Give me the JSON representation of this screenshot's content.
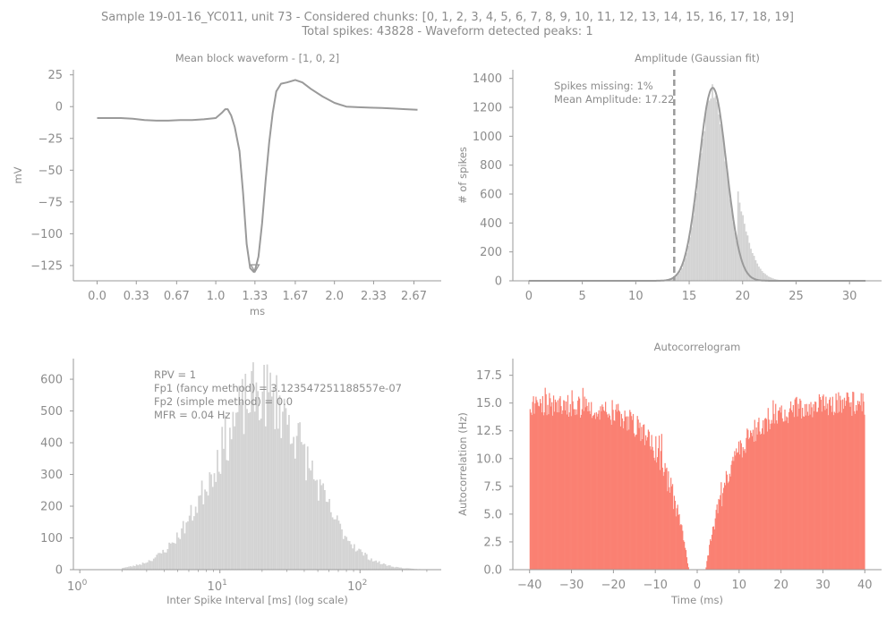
{
  "suptitle": {
    "line1": "Sample 19-01-16_YC011, unit 73 - Considered chunks: [0, 1, 2, 3, 4, 5, 6, 7, 8, 9, 10, 11, 12, 13, 14, 15, 16, 17, 18, 19]",
    "line2": "Total spikes: 43828 - Waveform detected peaks: 1"
  },
  "colors": {
    "waveform": "#d3d3d3",
    "histogram": "#d3d3d3",
    "gauss_fit": "#f2cc1f",
    "threshold": "#e8685c",
    "autocorr": "#fa8072",
    "peak_marker": "#e8685c",
    "axis": "#9a9a9a",
    "text": "#8c8c8c"
  },
  "chart_data": [
    {
      "id": "waveform",
      "type": "line",
      "title": "Mean block waveform - [1, 0, 2]",
      "xlabel": "ms",
      "ylabel": "mV",
      "xlim": [
        -0.2,
        2.9
      ],
      "ylim": [
        -137,
        29
      ],
      "xticks": [
        0.0,
        0.33,
        0.67,
        1.0,
        1.33,
        1.67,
        2.0,
        2.33,
        2.67
      ],
      "xtick_labels": [
        "0.0",
        "0.33",
        "0.67",
        "1.0",
        "1.33",
        "1.67",
        "2.0",
        "2.33",
        "2.67"
      ],
      "yticks": [
        25,
        0,
        -25,
        -50,
        -75,
        -100,
        -125
      ],
      "ytick_labels": [
        "25",
        "0",
        "−25",
        "−50",
        "−75",
        "−100",
        "−125"
      ],
      "x": [
        0.0,
        0.1,
        0.2,
        0.3,
        0.4,
        0.5,
        0.6,
        0.7,
        0.8,
        0.9,
        1.0,
        1.05,
        1.08,
        1.1,
        1.13,
        1.16,
        1.2,
        1.23,
        1.26,
        1.29,
        1.32,
        1.33,
        1.36,
        1.39,
        1.42,
        1.45,
        1.48,
        1.51,
        1.55,
        1.6,
        1.67,
        1.73,
        1.8,
        1.9,
        2.0,
        2.1,
        2.2,
        2.3,
        2.4,
        2.5,
        2.6,
        2.7
      ],
      "y": [
        -9,
        -9,
        -9,
        -9.5,
        -10.5,
        -11,
        -11,
        -10.5,
        -10.5,
        -10,
        -9,
        -5,
        -2,
        -2,
        -7,
        -16,
        -35,
        -68,
        -108,
        -127,
        -130,
        -129,
        -118,
        -92,
        -58,
        -28,
        -5,
        12,
        18,
        19,
        21,
        19,
        14,
        8,
        3,
        0,
        -0.5,
        -0.8,
        -1,
        -1.5,
        -2,
        -2.5
      ],
      "peak": {
        "x": 1.33,
        "y": -130
      }
    },
    {
      "id": "amplitude",
      "type": "bar",
      "title": "Amplitude (Gaussian fit)",
      "xlabel": "",
      "ylabel": "# of spikes",
      "xlim": [
        -1.5,
        33
      ],
      "ylim": [
        0,
        1460
      ],
      "xticks": [
        0,
        5,
        10,
        15,
        20,
        25,
        30
      ],
      "xtick_labels": [
        "0",
        "5",
        "10",
        "15",
        "20",
        "25",
        "30"
      ],
      "yticks": [
        0,
        200,
        400,
        600,
        800,
        1000,
        1200,
        1400
      ],
      "ytick_labels": [
        "0",
        "200",
        "400",
        "600",
        "800",
        "1000",
        "1200",
        "1400"
      ],
      "hist": {
        "start": 0,
        "end": 31.5,
        "nbins": 210,
        "mean": 17.22,
        "std": 1.25,
        "peak": 1310,
        "tail_above": 19.5,
        "tail_std": 1.9
      },
      "fit": {
        "mean": 17.2,
        "std": 1.28,
        "amp": 1335,
        "x_range": [
          0,
          31.5
        ]
      },
      "threshold_x": 13.6,
      "annotations": [
        "Spikes missing: 1%",
        "Mean Amplitude: 17.22"
      ]
    },
    {
      "id": "isi",
      "type": "bar",
      "title": "",
      "xlabel": "Inter Spike Interval [ms] (log scale)",
      "ylabel": "",
      "xscale": "log",
      "xlim": [
        0.9,
        380
      ],
      "ylim": [
        0,
        665
      ],
      "xticks": [
        1,
        10,
        100
      ],
      "xtick_base": "10",
      "xtick_exps": [
        "0",
        "1",
        "2"
      ],
      "yticks": [
        0,
        100,
        200,
        300,
        400,
        500,
        600
      ],
      "ytick_labels": [
        "0",
        "100",
        "200",
        "300",
        "400",
        "500",
        "600"
      ],
      "hist": {
        "log10_start": 0.3,
        "log10_end": 2.52,
        "nbins": 200,
        "log10_peak": 1.3,
        "sigma": 0.33,
        "peak": 555,
        "min_ms": 2.0
      },
      "annotations": [
        "RPV = 1",
        "Fp1 (fancy method) = 3.123547251188557e-07",
        "Fp2 (simple method) = 0.0",
        "MFR = 0.04 Hz"
      ]
    },
    {
      "id": "autocorr",
      "type": "bar",
      "title": "Autocorrelogram",
      "xlabel": "Time (ms)",
      "ylabel": "Autocorrelation (Hz)",
      "xlim": [
        -44,
        44
      ],
      "ylim": [
        0,
        19
      ],
      "xticks": [
        -40,
        -30,
        -20,
        -10,
        0,
        10,
        20,
        30,
        40
      ],
      "xtick_labels": [
        "−40",
        "−30",
        "−20",
        "−10",
        "0",
        "10",
        "20",
        "30",
        "40"
      ],
      "yticks": [
        0.0,
        2.5,
        5.0,
        7.5,
        10.0,
        12.5,
        15.0,
        17.5
      ],
      "ytick_labels": [
        "0.0",
        "2.5",
        "5.0",
        "7.5",
        "10.0",
        "12.5",
        "15.0",
        "17.5"
      ],
      "bins": {
        "start": -40,
        "end": 40,
        "nbins": 400,
        "baseline": 15.0,
        "refractory_ms": 2.0,
        "recovery_tau_ms": 6.5
      }
    }
  ]
}
